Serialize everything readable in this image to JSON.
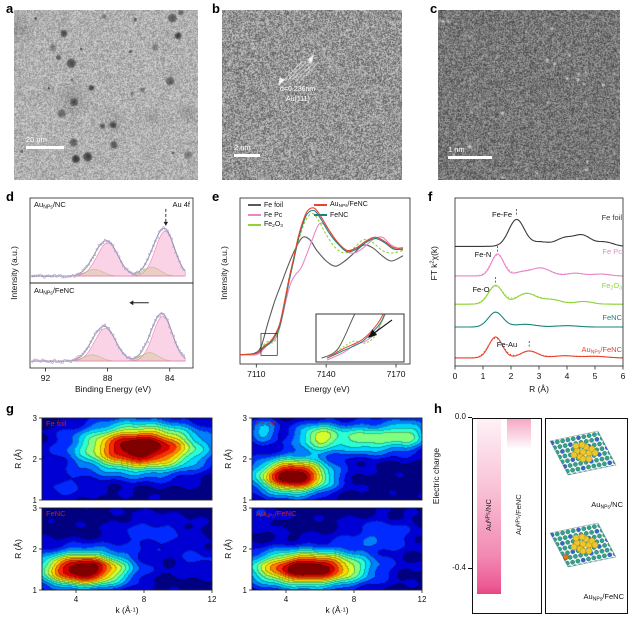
{
  "panels": {
    "a": {
      "letter": "a",
      "scalebar_label": "20 nm"
    },
    "b": {
      "letter": "b",
      "scalebar_label": "2 nm",
      "annotation_line1": "d=0.236nm",
      "annotation_line2": "Au(111)"
    },
    "c": {
      "letter": "c",
      "scalebar_label": "1 nm"
    },
    "d": {
      "letter": "d",
      "corner_label": "Au 4f",
      "xlabel": "Binding Energy (eV)",
      "ylabel": "Intensity (a.u.)",
      "chart": {
        "type": "line",
        "x_range": [
          93,
          82.5
        ],
        "xticks": [
          92,
          88,
          84
        ],
        "colors": {
          "fill_main": "#f6aacd",
          "stroke_main": "#e884b8",
          "fill_minor": "#c3e483",
          "stroke_minor": "#9cc353",
          "envelope": "#8e8ea2",
          "dots": "#b7a9cc"
        },
        "samples": [
          {
            "label": "Au_{NPs}/NC",
            "components_main": [
              {
                "center": 84.3,
                "height": 1.0,
                "sigma": 0.62
              },
              {
                "center": 88.0,
                "height": 0.74,
                "sigma": 0.68
              }
            ],
            "components_minor": [
              {
                "center": 85.15,
                "height": 0.2,
                "sigma": 0.55
              },
              {
                "center": 88.85,
                "height": 0.15,
                "sigma": 0.55
              }
            ]
          },
          {
            "label": "Au_{NPs}/FeNC",
            "components_main": [
              {
                "center": 84.45,
                "height": 1.0,
                "sigma": 0.62
              },
              {
                "center": 88.15,
                "height": 0.73,
                "sigma": 0.68
              }
            ],
            "components_minor": [
              {
                "center": 85.3,
                "height": 0.19,
                "sigma": 0.55
              },
              {
                "center": 89.0,
                "height": 0.14,
                "sigma": 0.55
              }
            ]
          }
        ]
      }
    },
    "e": {
      "letter": "e",
      "xlabel": "Energy (eV)",
      "ylabel": "Intensity (a.u.)",
      "chart": {
        "type": "line",
        "x_range": [
          7103,
          7176
        ],
        "xticks": [
          7110,
          7140,
          7170
        ],
        "series": [
          {
            "name": "Fe foil",
            "color": "#5a5a5a",
            "points": [
              [
                7103,
                0.01
              ],
              [
                7109,
                0.02
              ],
              [
                7112,
                0.07
              ],
              [
                7115,
                0.25
              ],
              [
                7118,
                0.42
              ],
              [
                7121,
                0.56
              ],
              [
                7124,
                0.7
              ],
              [
                7127,
                0.82
              ],
              [
                7130,
                0.9
              ],
              [
                7133,
                0.88
              ],
              [
                7136,
                0.8
              ],
              [
                7140,
                0.72
              ],
              [
                7144,
                0.68
              ],
              [
                7148,
                0.72
              ],
              [
                7152,
                0.78
              ],
              [
                7156,
                0.84
              ],
              [
                7160,
                0.82
              ],
              [
                7164,
                0.76
              ],
              [
                7168,
                0.72
              ],
              [
                7173,
                0.76
              ]
            ]
          },
          {
            "name": "Fe Pc",
            "color": "#ea85c7",
            "points": [
              [
                7103,
                0.01
              ],
              [
                7110,
                0.01
              ],
              [
                7113,
                0.05
              ],
              [
                7115,
                0.09
              ],
              [
                7117,
                0.11
              ],
              [
                7119,
                0.16
              ],
              [
                7121,
                0.28
              ],
              [
                7123,
                0.44
              ],
              [
                7125,
                0.56
              ],
              [
                7127,
                0.62
              ],
              [
                7129,
                0.66
              ],
              [
                7131,
                0.74
              ],
              [
                7134,
                0.88
              ],
              [
                7137,
                1.0
              ],
              [
                7140,
                0.98
              ],
              [
                7144,
                0.88
              ],
              [
                7148,
                0.8
              ],
              [
                7152,
                0.78
              ],
              [
                7156,
                0.82
              ],
              [
                7160,
                0.88
              ],
              [
                7164,
                0.9
              ],
              [
                7168,
                0.84
              ],
              [
                7173,
                0.8
              ]
            ]
          },
          {
            "name": "Fe_{2}O_{3}",
            "color": "#8ed337",
            "points": [
              [
                7103,
                0.01
              ],
              [
                7110,
                0.02
              ],
              [
                7113,
                0.08
              ],
              [
                7115,
                0.11
              ],
              [
                7117,
                0.1
              ],
              [
                7119,
                0.15
              ],
              [
                7121,
                0.3
              ],
              [
                7123,
                0.5
              ],
              [
                7125,
                0.66
              ],
              [
                7127,
                0.8
              ],
              [
                7129,
                0.92
              ],
              [
                7131,
                1.02
              ],
              [
                7134,
                1.08
              ],
              [
                7137,
                1.02
              ],
              [
                7140,
                0.92
              ],
              [
                7144,
                0.82
              ],
              [
                7148,
                0.78
              ],
              [
                7152,
                0.82
              ],
              [
                7156,
                0.88
              ],
              [
                7160,
                0.86
              ],
              [
                7164,
                0.8
              ],
              [
                7168,
                0.78
              ],
              [
                7173,
                0.8
              ]
            ]
          },
          {
            "name": "Au_{NPs}/FeNC",
            "color": "#e8432b",
            "points": [
              [
                7103,
                0.01
              ],
              [
                7110,
                0.02
              ],
              [
                7113,
                0.07
              ],
              [
                7116,
                0.11
              ],
              [
                7118,
                0.16
              ],
              [
                7120,
                0.24
              ],
              [
                7122,
                0.4
              ],
              [
                7124,
                0.58
              ],
              [
                7126,
                0.74
              ],
              [
                7128,
                0.9
              ],
              [
                7130,
                1.02
              ],
              [
                7132,
                1.1
              ],
              [
                7135,
                1.12
              ],
              [
                7138,
                1.05
              ],
              [
                7141,
                0.96
              ],
              [
                7145,
                0.86
              ],
              [
                7149,
                0.8
              ],
              [
                7153,
                0.82
              ],
              [
                7157,
                0.87
              ],
              [
                7161,
                0.9
              ],
              [
                7165,
                0.87
              ],
              [
                7169,
                0.82
              ],
              [
                7173,
                0.82
              ]
            ]
          },
          {
            "name": "FeNC",
            "color": "#17867f",
            "points": [
              [
                7103,
                0.01
              ],
              [
                7110,
                0.02
              ],
              [
                7113,
                0.06
              ],
              [
                7116,
                0.1
              ],
              [
                7118,
                0.15
              ],
              [
                7120,
                0.22
              ],
              [
                7122,
                0.38
              ],
              [
                7124,
                0.56
              ],
              [
                7126,
                0.72
              ],
              [
                7128,
                0.88
              ],
              [
                7130,
                1.0
              ],
              [
                7132,
                1.08
              ],
              [
                7135,
                1.1
              ],
              [
                7138,
                1.03
              ],
              [
                7141,
                0.94
              ],
              [
                7145,
                0.85
              ],
              [
                7149,
                0.79
              ],
              [
                7153,
                0.81
              ],
              [
                7157,
                0.86
              ],
              [
                7161,
                0.89
              ],
              [
                7165,
                0.86
              ],
              [
                7169,
                0.81
              ],
              [
                7173,
                0.81
              ]
            ]
          }
        ]
      }
    },
    "f": {
      "letter": "f",
      "xlabel": "R (Å)",
      "ylabel": "FT k^{2}χ(k)",
      "chart": {
        "type": "line",
        "x_range": [
          0,
          6
        ],
        "xticks": [
          0,
          1,
          2,
          3,
          4,
          5,
          6
        ],
        "y_range": [
          0,
          6.1
        ],
        "series": [
          {
            "name": "Fe foil",
            "color": "#3a3a3a",
            "offset": 4.45,
            "fit": false,
            "peaks": [
              [
                2.2,
                1.0,
                0.28
              ],
              [
                3.05,
                0.16,
                0.3
              ],
              [
                3.9,
                0.3,
                0.3
              ],
              [
                4.55,
                0.4,
                0.3
              ],
              [
                5.35,
                0.16,
                0.3
              ]
            ]
          },
          {
            "name": "Fe Pc",
            "color": "#ea85c7",
            "offset": 3.35,
            "fit": true,
            "peaks": [
              [
                1.52,
                0.82,
                0.22
              ],
              [
                2.35,
                0.12,
                0.25
              ],
              [
                3.05,
                0.3,
                0.35
              ],
              [
                4.3,
                0.1,
                0.3
              ],
              [
                5.2,
                0.07,
                0.3
              ]
            ]
          },
          {
            "name": "Fe_{2}O_{3}",
            "color": "#8ed337",
            "offset": 2.3,
            "fit": true,
            "peaks": [
              [
                1.45,
                0.7,
                0.25
              ],
              [
                2.55,
                0.4,
                0.35
              ],
              [
                3.45,
                0.17,
                0.35
              ],
              [
                4.6,
                0.1,
                0.3
              ]
            ]
          },
          {
            "name": "FeNC",
            "color": "#17867f",
            "offset": 1.45,
            "fit": false,
            "peaks": [
              [
                1.45,
                0.55,
                0.26
              ],
              [
                2.5,
                0.1,
                0.4
              ],
              [
                4.0,
                0.05,
                0.4
              ]
            ]
          },
          {
            "name": "Au_{NPs}/FeNC",
            "color": "#e8432b",
            "offset": 0.3,
            "fit": true,
            "peaks": [
              [
                1.45,
                0.78,
                0.24
              ],
              [
                2.65,
                0.26,
                0.3
              ],
              [
                3.9,
                0.08,
                0.4
              ],
              [
                5.0,
                0.06,
                0.4
              ]
            ]
          }
        ],
        "annotations": [
          {
            "text": "Fe-Fe"
          },
          {
            "text": "Fe-N"
          },
          {
            "text": "Fe-O"
          },
          {
            "text": "Fe-Au"
          }
        ]
      }
    },
    "g": {
      "letter": "g",
      "ylabel": "R (Å)",
      "xlabel": "k (Å^{-1})",
      "chart": {
        "type": "heatmap",
        "x_range": [
          2,
          12
        ],
        "y_range": [
          1,
          3
        ],
        "xticks": [
          4,
          8,
          12
        ],
        "yticks": [
          1,
          2,
          3
        ],
        "subplots": [
          {
            "name": "Fe foil",
            "blobs": [
              [
                7.8,
                2.28,
                2.4,
                0.4,
                1.0
              ],
              [
                3.2,
                1.25,
                1.2,
                0.28,
                0.12
              ]
            ]
          },
          {
            "name": "Fe Pc",
            "blobs": [
              [
                4.4,
                1.58,
                1.5,
                0.3,
                1.0
              ],
              [
                5.9,
                2.55,
                1.0,
                0.26,
                0.5
              ],
              [
                8.8,
                2.5,
                1.3,
                0.28,
                0.45
              ],
              [
                11.2,
                2.6,
                0.9,
                0.28,
                0.38
              ],
              [
                2.6,
                2.7,
                0.7,
                0.22,
                0.3
              ]
            ]
          },
          {
            "name": "FeNC",
            "blobs": [
              [
                4.4,
                1.5,
                1.8,
                0.3,
                1.0
              ],
              [
                8.5,
                2.4,
                1.6,
                0.3,
                0.16
              ],
              [
                11.2,
                1.7,
                1.0,
                0.3,
                0.12
              ]
            ]
          },
          {
            "name": "Au_{NPs}/FeNC",
            "blobs": [
              [
                5.3,
                1.52,
                2.3,
                0.3,
                1.0
              ],
              [
                9.5,
                2.35,
                1.6,
                0.3,
                0.18
              ],
              [
                2.6,
                2.8,
                0.8,
                0.25,
                0.1
              ]
            ]
          }
        ]
      }
    },
    "h": {
      "letter": "h",
      "ylabel": "Electric charge",
      "chart": {
        "type": "bar",
        "y_range": [
          0,
          -0.52
        ],
        "ytick_labels": [
          "0.0",
          "-0.4"
        ],
        "ytick_values": [
          0,
          -0.4
        ],
        "bars": [
          {
            "label": "Au_{NPs}/NC",
            "value": -0.47
          },
          {
            "label": "Au_{NPs}/FeNC",
            "value": -0.08
          }
        ]
      },
      "models": [
        {
          "label": "Au_{NPs}/NC"
        },
        {
          "label": "Au_{NPs}/FeNC"
        }
      ]
    }
  }
}
